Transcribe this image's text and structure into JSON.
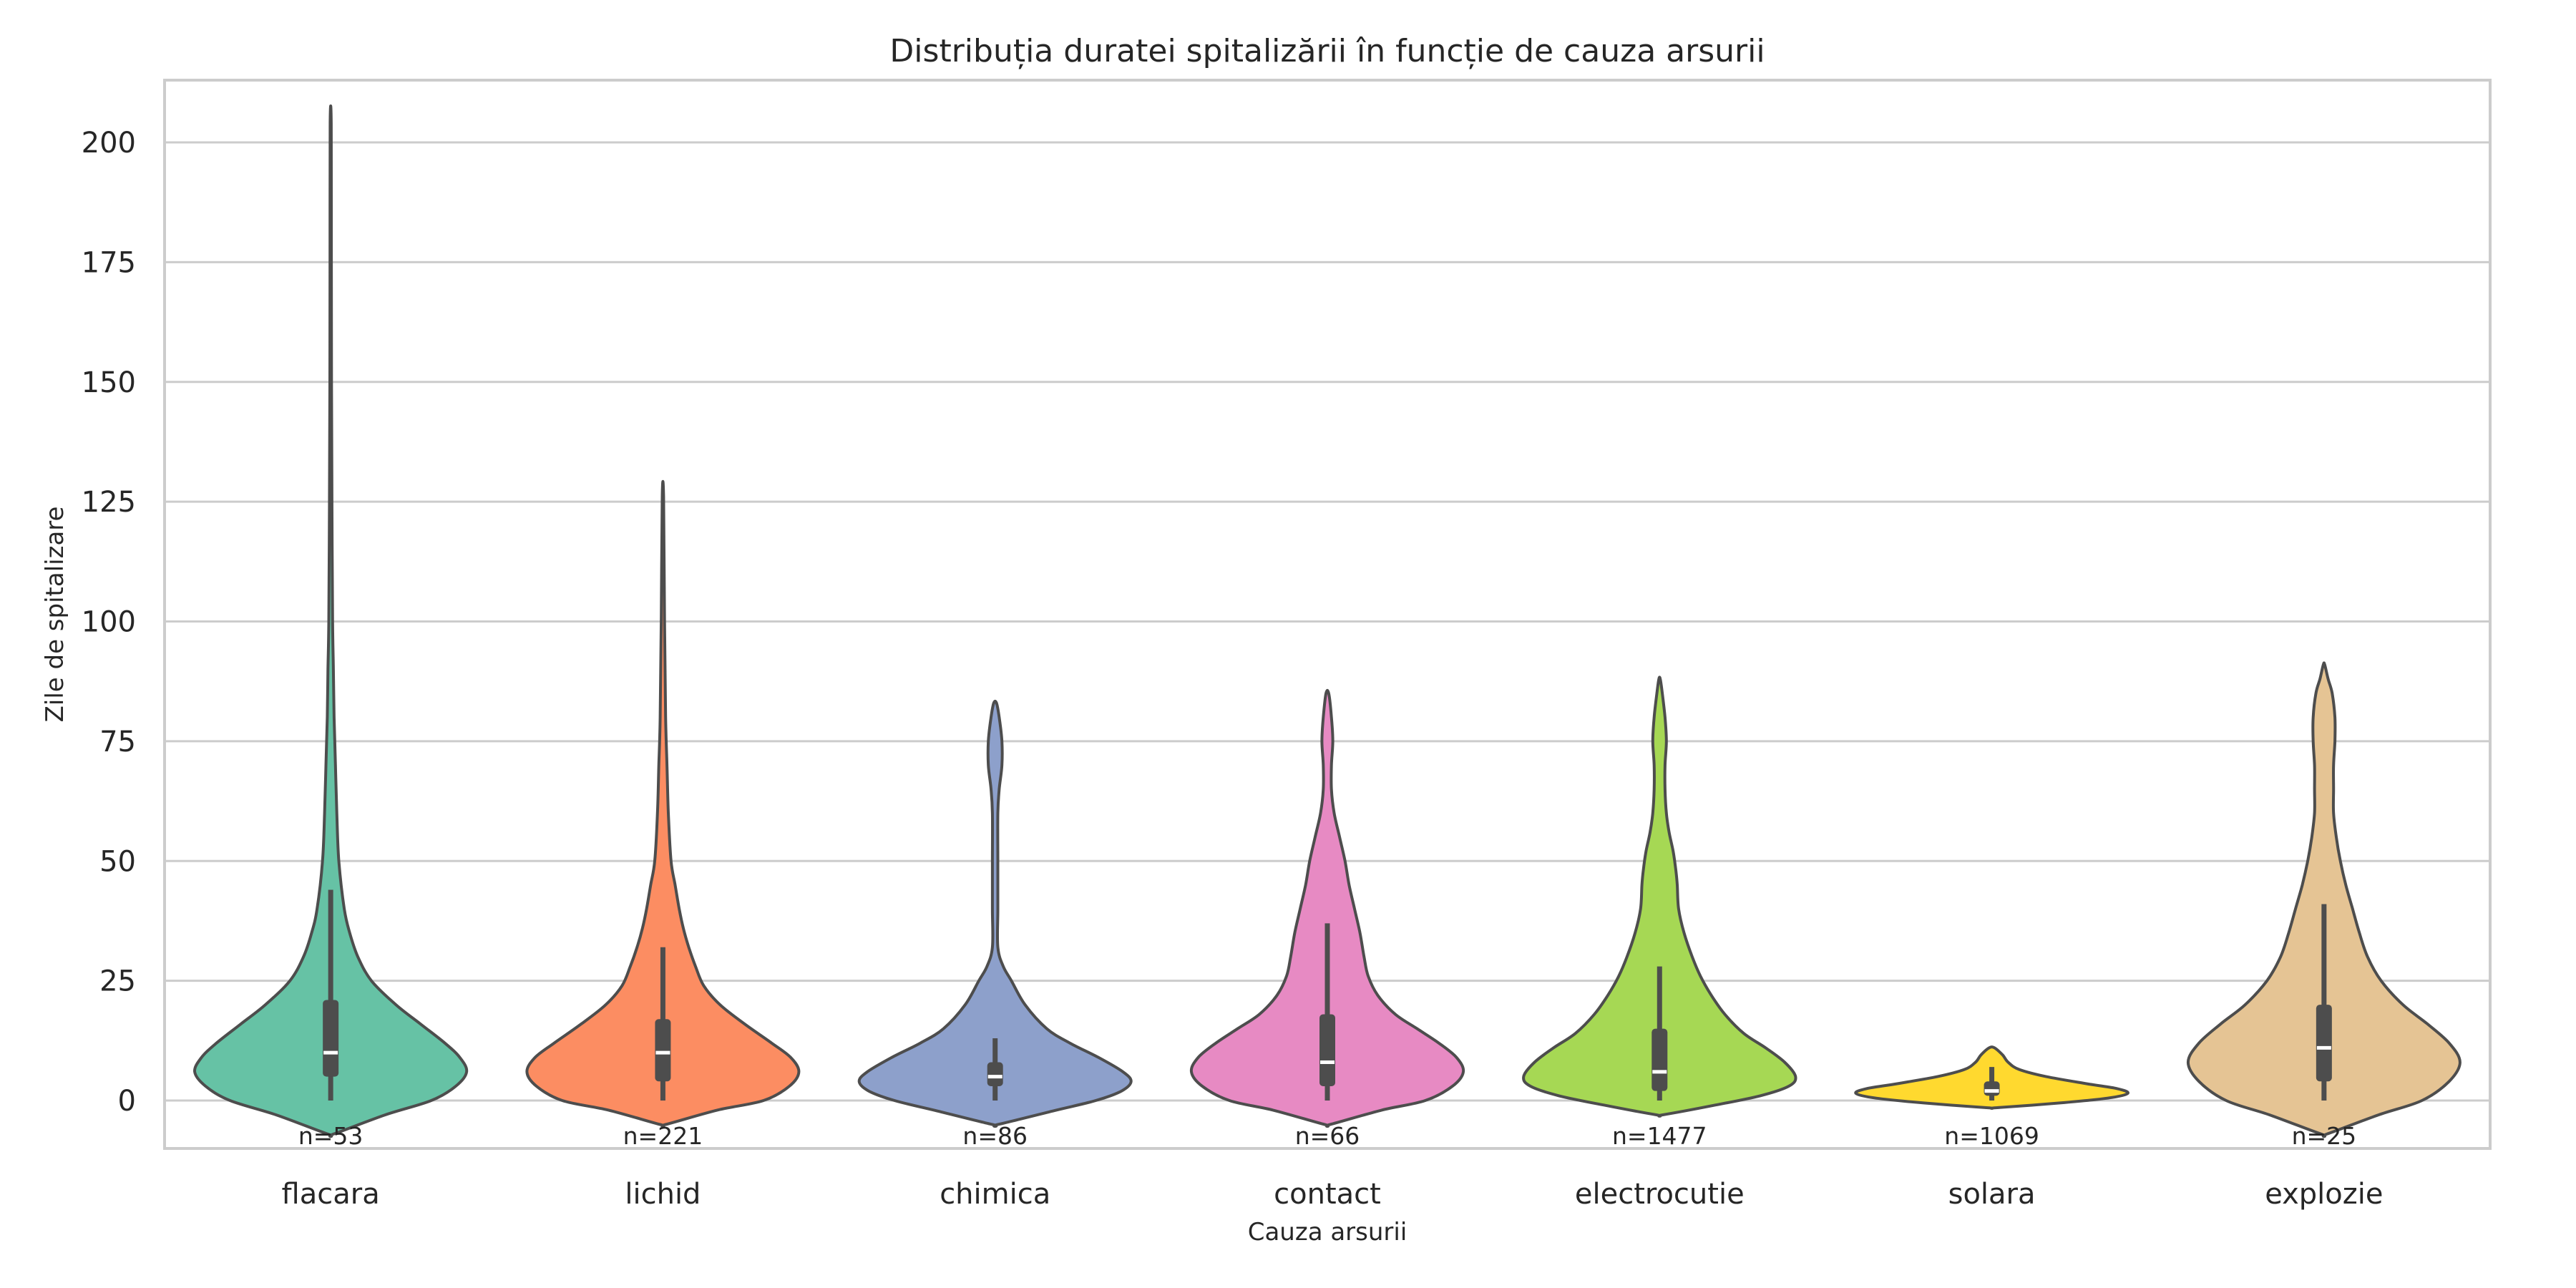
{
  "chart_data": {
    "type": "violin",
    "title": "Distribuția duratei spitalizării în funcție de cauza arsurii",
    "xlabel": "Cauza arsurii",
    "ylabel": "Zile de spitalizare",
    "ylim": [
      -10,
      213
    ],
    "yticks": [
      0,
      25,
      50,
      75,
      100,
      125,
      150,
      175,
      200
    ],
    "grid": true,
    "categories": [
      {
        "name": "flacara",
        "n_label": "n=53",
        "color": "#66c2a5",
        "min": 0,
        "max": 204,
        "q1": 5,
        "median": 10,
        "q3": 21,
        "whisker_low": 0,
        "whisker_high": 44,
        "profile": [
          [
            -7,
            0.02
          ],
          [
            -3,
            0.4
          ],
          [
            0,
            0.74
          ],
          [
            3,
            0.92
          ],
          [
            6,
            1.0
          ],
          [
            9,
            0.95
          ],
          [
            12,
            0.84
          ],
          [
            16,
            0.66
          ],
          [
            20,
            0.48
          ],
          [
            25,
            0.3
          ],
          [
            30,
            0.2
          ],
          [
            35,
            0.14
          ],
          [
            40,
            0.1
          ],
          [
            50,
            0.06
          ],
          [
            60,
            0.045
          ],
          [
            70,
            0.035
          ],
          [
            80,
            0.025
          ],
          [
            90,
            0.02
          ],
          [
            100,
            0.014
          ],
          [
            125,
            0.009
          ],
          [
            150,
            0.006
          ],
          [
            175,
            0.005
          ],
          [
            204,
            0.004
          ]
        ]
      },
      {
        "name": "lichid",
        "n_label": "n=221",
        "color": "#fc8d62",
        "min": 0,
        "max": 126,
        "q1": 4,
        "median": 10,
        "q3": 17,
        "whisker_low": 0,
        "whisker_high": 32,
        "profile": [
          [
            -5,
            0.02
          ],
          [
            -2,
            0.4
          ],
          [
            0,
            0.74
          ],
          [
            3,
            0.93
          ],
          [
            6,
            1.0
          ],
          [
            9,
            0.94
          ],
          [
            12,
            0.8
          ],
          [
            16,
            0.6
          ],
          [
            20,
            0.42
          ],
          [
            24,
            0.3
          ],
          [
            28,
            0.24
          ],
          [
            32,
            0.19
          ],
          [
            36,
            0.15
          ],
          [
            40,
            0.12
          ],
          [
            45,
            0.09
          ],
          [
            50,
            0.06
          ],
          [
            60,
            0.04
          ],
          [
            70,
            0.03
          ],
          [
            80,
            0.02
          ],
          [
            100,
            0.012
          ],
          [
            126,
            0.005
          ]
        ]
      },
      {
        "name": "chimica",
        "n_label": "n=86",
        "color": "#8da0cb",
        "min": 0,
        "max": 83,
        "q1": 3,
        "median": 5,
        "q3": 8,
        "whisker_low": 0,
        "whisker_high": 13,
        "profile": [
          [
            -5,
            0.02
          ],
          [
            -2,
            0.45
          ],
          [
            0,
            0.74
          ],
          [
            2,
            0.93
          ],
          [
            4,
            1.0
          ],
          [
            6,
            0.94
          ],
          [
            9,
            0.76
          ],
          [
            12,
            0.55
          ],
          [
            15,
            0.38
          ],
          [
            20,
            0.22
          ],
          [
            25,
            0.12
          ],
          [
            28,
            0.06
          ],
          [
            32,
            0.02
          ],
          [
            40,
            0.02
          ],
          [
            50,
            0.02
          ],
          [
            60,
            0.02
          ],
          [
            65,
            0.03
          ],
          [
            70,
            0.05
          ],
          [
            75,
            0.05
          ],
          [
            80,
            0.03
          ],
          [
            83,
            0.01
          ]
        ]
      },
      {
        "name": "contact",
        "n_label": "n=66",
        "color": "#e78ac3",
        "min": 0,
        "max": 85,
        "q1": 3,
        "median": 8,
        "q3": 18,
        "whisker_low": 0,
        "whisker_high": 37,
        "profile": [
          [
            -5,
            0.02
          ],
          [
            -2,
            0.4
          ],
          [
            0,
            0.72
          ],
          [
            3,
            0.92
          ],
          [
            6,
            1.0
          ],
          [
            9,
            0.95
          ],
          [
            12,
            0.82
          ],
          [
            15,
            0.66
          ],
          [
            18,
            0.5
          ],
          [
            22,
            0.37
          ],
          [
            26,
            0.3
          ],
          [
            30,
            0.27
          ],
          [
            35,
            0.24
          ],
          [
            40,
            0.2
          ],
          [
            45,
            0.16
          ],
          [
            50,
            0.13
          ],
          [
            55,
            0.09
          ],
          [
            60,
            0.05
          ],
          [
            65,
            0.03
          ],
          [
            70,
            0.03
          ],
          [
            75,
            0.04
          ],
          [
            80,
            0.03
          ],
          [
            85,
            0.01
          ]
        ]
      },
      {
        "name": "electrocutie",
        "n_label": "n=1477",
        "color": "#a6d854",
        "min": 0,
        "max": 88,
        "q1": 2,
        "median": 6,
        "q3": 15,
        "whisker_low": 0,
        "whisker_high": 28,
        "profile": [
          [
            -3,
            0.02
          ],
          [
            -1,
            0.4
          ],
          [
            1,
            0.74
          ],
          [
            3,
            0.95
          ],
          [
            5,
            1.0
          ],
          [
            8,
            0.92
          ],
          [
            11,
            0.78
          ],
          [
            14,
            0.62
          ],
          [
            18,
            0.48
          ],
          [
            22,
            0.38
          ],
          [
            26,
            0.3
          ],
          [
            30,
            0.24
          ],
          [
            35,
            0.18
          ],
          [
            40,
            0.14
          ],
          [
            45,
            0.13
          ],
          [
            48,
            0.12
          ],
          [
            52,
            0.1
          ],
          [
            56,
            0.07
          ],
          [
            60,
            0.05
          ],
          [
            65,
            0.04
          ],
          [
            70,
            0.04
          ],
          [
            75,
            0.05
          ],
          [
            80,
            0.04
          ],
          [
            85,
            0.02
          ],
          [
            88,
            0.005
          ]
        ]
      },
      {
        "name": "solara",
        "n_label": "n=1069",
        "color": "#ffd92f",
        "min": 0,
        "max": 11,
        "q1": 1,
        "median": 2,
        "q3": 4,
        "whisker_low": 0,
        "whisker_high": 7,
        "profile": [
          [
            -1.5,
            0.03
          ],
          [
            -0.5,
            0.5
          ],
          [
            0.5,
            0.85
          ],
          [
            1.5,
            1.0
          ],
          [
            2.5,
            0.92
          ],
          [
            3.5,
            0.7
          ],
          [
            5,
            0.4
          ],
          [
            6.5,
            0.2
          ],
          [
            8,
            0.12
          ],
          [
            9.5,
            0.08
          ],
          [
            11,
            0.02
          ]
        ]
      },
      {
        "name": "explozie",
        "n_label": "n=25",
        "color": "#e5c494",
        "min": 0,
        "max": 91,
        "q1": 4,
        "median": 11,
        "q3": 20,
        "whisker_low": 0,
        "whisker_high": 41,
        "profile": [
          [
            -7,
            0.02
          ],
          [
            -3,
            0.4
          ],
          [
            0,
            0.72
          ],
          [
            4,
            0.92
          ],
          [
            8,
            1.0
          ],
          [
            12,
            0.92
          ],
          [
            16,
            0.76
          ],
          [
            20,
            0.58
          ],
          [
            25,
            0.42
          ],
          [
            30,
            0.32
          ],
          [
            35,
            0.26
          ],
          [
            40,
            0.21
          ],
          [
            45,
            0.16
          ],
          [
            50,
            0.12
          ],
          [
            55,
            0.09
          ],
          [
            60,
            0.07
          ],
          [
            65,
            0.07
          ],
          [
            70,
            0.07
          ],
          [
            75,
            0.08
          ],
          [
            80,
            0.08
          ],
          [
            85,
            0.06
          ],
          [
            88,
            0.03
          ],
          [
            91,
            0.005
          ]
        ]
      }
    ]
  }
}
